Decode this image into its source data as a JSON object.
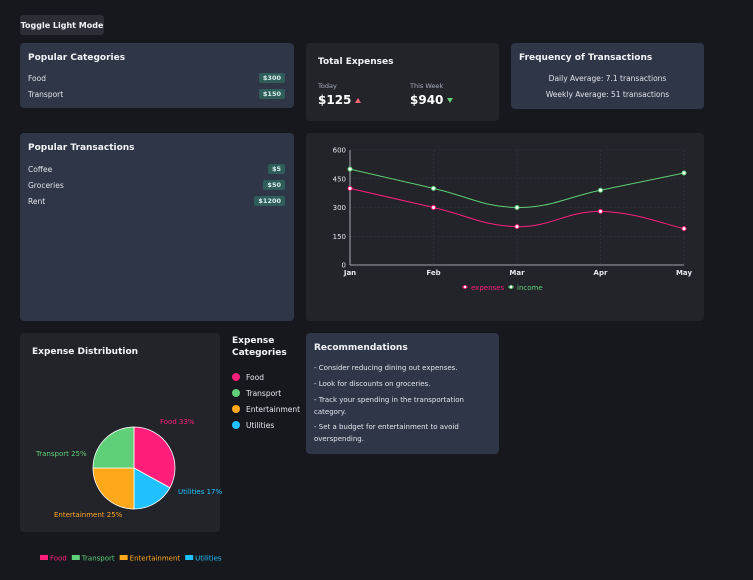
{
  "toggle_label": "Toggle Light Mode",
  "popular_categories": {
    "title": "Popular Categories",
    "items": [
      {
        "name": "Food",
        "amount": "$300"
      },
      {
        "name": "Transport",
        "amount": "$150"
      }
    ]
  },
  "total_expenses": {
    "title": "Total Expenses",
    "today_label": "Today",
    "today_value": "$125",
    "week_label": "This Week",
    "week_value": "$940"
  },
  "frequency": {
    "title": "Frequency of Transactions",
    "daily": "Daily Average: 7.1 transactions",
    "weekly": "Weekly Average: 51 transactions"
  },
  "popular_transactions": {
    "title": "Popular Transactions",
    "items": [
      {
        "name": "Coffee",
        "amount": "$5"
      },
      {
        "name": "Groceries",
        "amount": "$50"
      },
      {
        "name": "Rent",
        "amount": "$1200"
      }
    ]
  },
  "line_chart": {
    "type": "line",
    "categories": [
      "Jan",
      "Feb",
      "Mar",
      "Apr",
      "May"
    ],
    "yticks": [
      "0",
      "150",
      "300",
      "450",
      "600"
    ],
    "ylim": [
      0,
      600
    ],
    "series": [
      {
        "name": "expenses",
        "color": "#ff1f7a",
        "values": [
          400,
          300,
          200,
          280,
          190
        ]
      },
      {
        "name": "income",
        "color": "#5fd077",
        "values": [
          500,
          400,
          300,
          390,
          480
        ]
      }
    ]
  },
  "expense_distribution": {
    "title": "Expense Distribution",
    "type": "pie",
    "slices": [
      {
        "name": "Food",
        "label": "Food 33%",
        "value": 33,
        "color": "#ff1f7a"
      },
      {
        "name": "Utilities",
        "label": "Utilities 17%",
        "value": 17,
        "color": "#1fc2ff"
      },
      {
        "name": "Entertainment",
        "label": "Entertainment 25%",
        "value": 25,
        "color": "#ffa81a"
      },
      {
        "name": "Transport",
        "label": "Transport 25%",
        "value": 25,
        "color": "#5fd077"
      }
    ],
    "legend": [
      "Food",
      "Transport",
      "Entertainment",
      "Utilities"
    ]
  },
  "expense_categories": {
    "title": "Expense Categories",
    "items": [
      {
        "name": "Food",
        "color": "#ff1f7a"
      },
      {
        "name": "Transport",
        "color": "#5fd077"
      },
      {
        "name": "Entertainment",
        "color": "#ffa81a"
      },
      {
        "name": "Utilities",
        "color": "#1fc2ff"
      }
    ]
  },
  "recommendations": {
    "title": "Recommendations",
    "items": [
      "- Consider reducing dining out expenses.",
      "- Look for discounts on groceries.",
      "- Track your spending in the transportation category.",
      "- Set a budget for entertainment to avoid overspending."
    ]
  }
}
